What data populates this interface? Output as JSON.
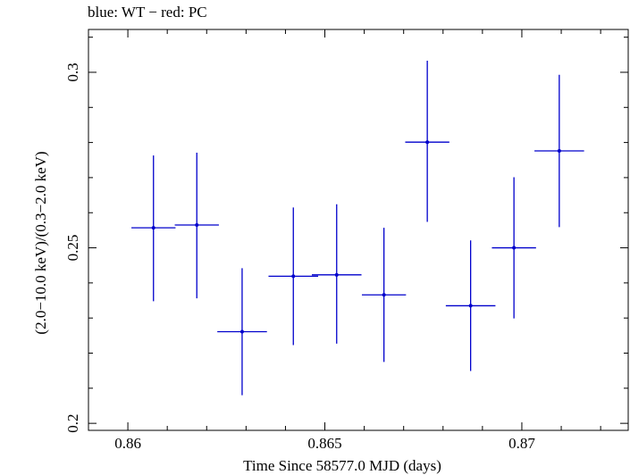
{
  "chart_data": {
    "type": "scatter",
    "title": "blue: WT − red: PC",
    "xlabel": "Time Since 58577.0 MJD (days)",
    "ylabel": "(2.0−10.0 keV)/(0.3−2.0 keV)",
    "xlim": [
      0.859,
      0.8727
    ],
    "ylim": [
      0.198,
      0.3122
    ],
    "x_ticks": [
      0.86,
      0.865,
      0.87
    ],
    "x_tick_labels": [
      "0.86",
      "0.865",
      "0.87"
    ],
    "y_ticks": [
      0.2,
      0.25,
      0.3
    ],
    "y_tick_labels": [
      "0.2",
      "0.25",
      "0.3"
    ],
    "grid": false,
    "series": [
      {
        "color": "#0000cc",
        "points": [
          {
            "x": 0.86065,
            "y": 0.2557,
            "xerr": 0.00056,
            "yerr_low": 0.0209,
            "yerr_high": 0.0206
          },
          {
            "x": 0.86175,
            "y": 0.2565,
            "xerr": 0.00056,
            "yerr_low": 0.0209,
            "yerr_high": 0.0206
          },
          {
            "x": 0.8629,
            "y": 0.2261,
            "xerr": 0.00063,
            "yerr_low": 0.0181,
            "yerr_high": 0.0181
          },
          {
            "x": 0.8642,
            "y": 0.2419,
            "xerr": 0.00063,
            "yerr_low": 0.0196,
            "yerr_high": 0.0196
          },
          {
            "x": 0.8653,
            "y": 0.2423,
            "xerr": 0.00063,
            "yerr_low": 0.0196,
            "yerr_high": 0.0201
          },
          {
            "x": 0.8665,
            "y": 0.2366,
            "xerr": 0.00056,
            "yerr_low": 0.0191,
            "yerr_high": 0.0191
          },
          {
            "x": 0.8676,
            "y": 0.2801,
            "xerr": 0.00056,
            "yerr_low": 0.0227,
            "yerr_high": 0.0232
          },
          {
            "x": 0.8687,
            "y": 0.2335,
            "xerr": 0.00063,
            "yerr_low": 0.0186,
            "yerr_high": 0.0186
          },
          {
            "x": 0.8698,
            "y": 0.25,
            "xerr": 0.00056,
            "yerr_low": 0.0201,
            "yerr_high": 0.0201
          },
          {
            "x": 0.87095,
            "y": 0.2776,
            "xerr": 0.00063,
            "yerr_low": 0.0217,
            "yerr_high": 0.0217
          }
        ]
      }
    ]
  }
}
